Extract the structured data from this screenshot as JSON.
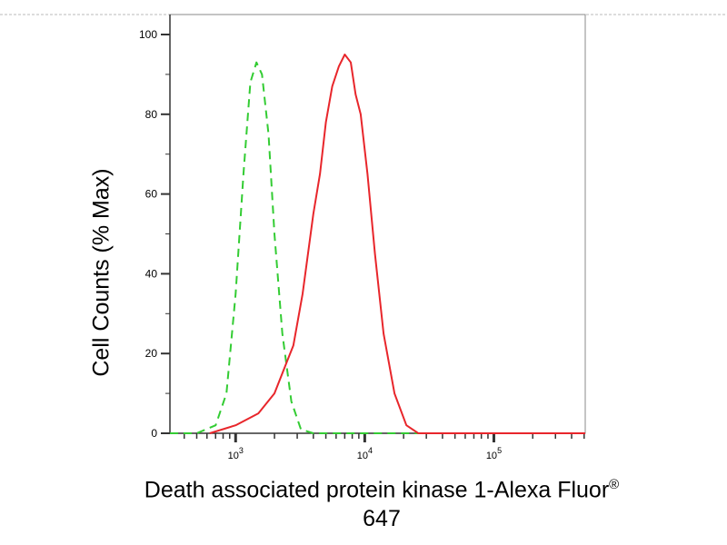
{
  "chart_data": {
    "type": "line",
    "title": "",
    "xlabel_line1": "Death associated protein kinase 1-Alexa Fluor",
    "xlabel_mark": "®",
    "xlabel_line2": "647",
    "ylabel": "Cell Counts (% Max)",
    "x_scale": "log",
    "xlim": [
      310,
      510000
    ],
    "ylim": [
      0,
      100
    ],
    "x_ticks": [
      {
        "value": 1000,
        "label": "10",
        "exp": "3"
      },
      {
        "value": 10000,
        "label": "10",
        "exp": "4"
      },
      {
        "value": 100000,
        "label": "10",
        "exp": "5"
      }
    ],
    "y_ticks": [
      0,
      20,
      40,
      60,
      80,
      100
    ],
    "grid": false,
    "series": [
      {
        "color": "#33cc33",
        "style": "dashed",
        "points": [
          [
            310,
            0
          ],
          [
            500,
            0
          ],
          [
            700,
            2
          ],
          [
            850,
            10
          ],
          [
            1000,
            35
          ],
          [
            1150,
            65
          ],
          [
            1300,
            88
          ],
          [
            1450,
            93
          ],
          [
            1600,
            90
          ],
          [
            1800,
            75
          ],
          [
            2000,
            50
          ],
          [
            2300,
            25
          ],
          [
            2700,
            8
          ],
          [
            3200,
            1
          ],
          [
            4000,
            0
          ],
          [
            30000,
            0
          ]
        ]
      },
      {
        "color": "#e8262b",
        "style": "solid",
        "points": [
          [
            630,
            0
          ],
          [
            1000,
            2
          ],
          [
            1500,
            5
          ],
          [
            2000,
            10
          ],
          [
            2500,
            18
          ],
          [
            2800,
            22
          ],
          [
            3300,
            35
          ],
          [
            4000,
            55
          ],
          [
            4500,
            65
          ],
          [
            5000,
            78
          ],
          [
            5600,
            87
          ],
          [
            6300,
            92
          ],
          [
            7000,
            95
          ],
          [
            7800,
            93
          ],
          [
            8500,
            85
          ],
          [
            9300,
            80
          ],
          [
            10500,
            65
          ],
          [
            12000,
            45
          ],
          [
            14000,
            25
          ],
          [
            17000,
            10
          ],
          [
            21000,
            2
          ],
          [
            26000,
            0
          ],
          [
            510000,
            0
          ]
        ]
      }
    ]
  }
}
